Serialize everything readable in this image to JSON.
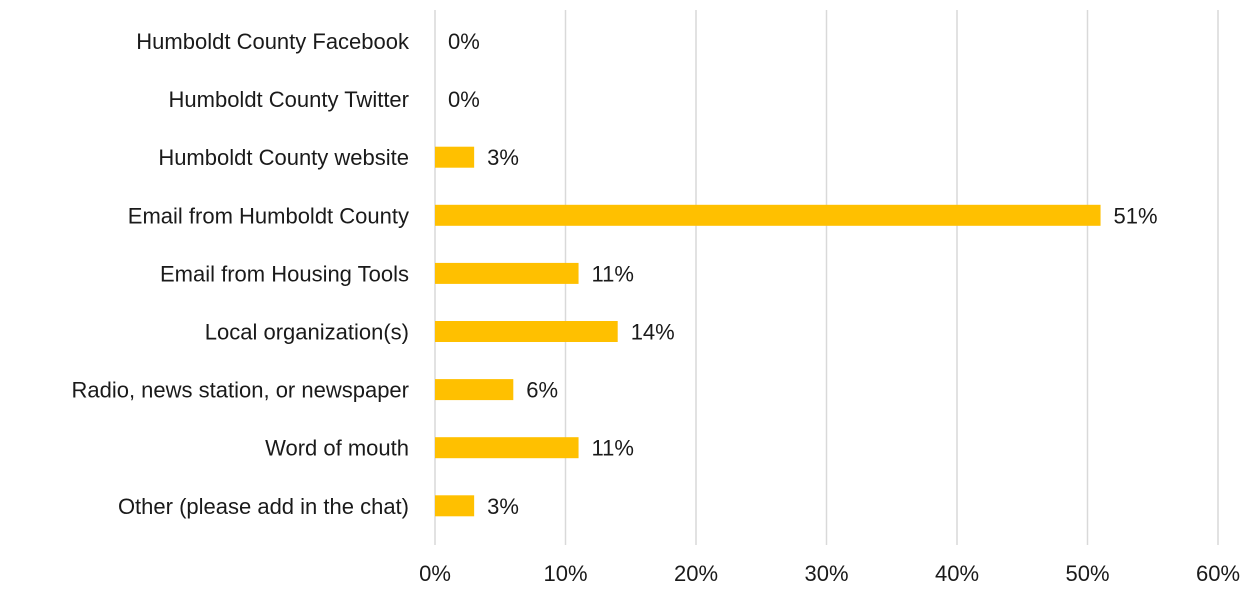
{
  "chart_data": {
    "type": "bar",
    "orientation": "horizontal",
    "title": "",
    "xlabel": "",
    "ylabel": "",
    "categories": [
      "Humboldt County Facebook",
      "Humboldt County Twitter",
      "Humboldt County website",
      "Email from Humboldt County",
      "Email from Housing Tools",
      "Local organization(s)",
      "Radio, news station, or newspaper",
      "Word of mouth",
      "Other (please add in the chat)"
    ],
    "values": [
      0,
      0,
      3,
      51,
      11,
      14,
      6,
      11,
      3
    ],
    "data_labels": [
      "0%",
      "0%",
      "3%",
      "51%",
      "11%",
      "14%",
      "6%",
      "11%",
      "3%"
    ],
    "xlim": [
      0,
      60
    ],
    "x_ticks": [
      0,
      10,
      20,
      30,
      40,
      50,
      60
    ],
    "x_tick_labels": [
      "0%",
      "10%",
      "20%",
      "30%",
      "40%",
      "50%",
      "60%"
    ],
    "grid": "vertical",
    "legend": "none",
    "colors": {
      "bar": "#FFC000",
      "grid": "#D9D9D9",
      "text": "#1a1a1a"
    }
  }
}
